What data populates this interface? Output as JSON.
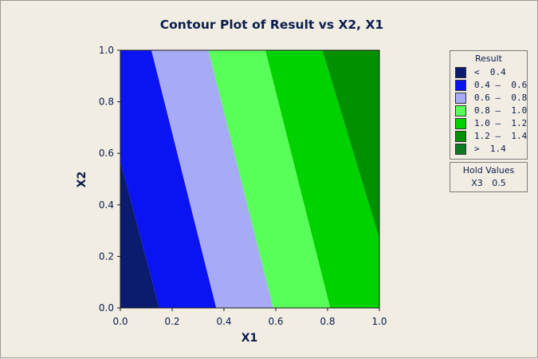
{
  "chart_data": {
    "type": "contour",
    "title": "Contour Plot of Result vs X2, X1",
    "xlabel": "X1",
    "ylabel": "X2",
    "xlim": [
      0.0,
      1.0
    ],
    "ylim": [
      0.0,
      1.0
    ],
    "xticks": [
      "0.0",
      "0.2",
      "0.4",
      "0.6",
      "0.8",
      "1.0"
    ],
    "yticks": [
      "0.0",
      "0.2",
      "0.4",
      "0.6",
      "0.8",
      "1.0"
    ],
    "contour_boundaries": [
      {
        "level": 0.4,
        "x_at_y0": 0.15,
        "x_at_y1": 0.0,
        "y_at_x0": 0.57
      },
      {
        "level": 0.6,
        "x_at_y0": 0.37,
        "x_at_y1": 0.12
      },
      {
        "level": 0.8,
        "x_at_y0": 0.59,
        "x_at_y1": 0.34
      },
      {
        "level": 1.0,
        "x_at_y0": 0.81,
        "x_at_y1": 0.56
      },
      {
        "level": 1.2,
        "x_at_y1": 0.78,
        "y_at_x1": 0.27
      },
      {
        "level": 1.4,
        "x_at_y1": 1.0,
        "y_at_x1": 0.93
      }
    ],
    "legend": {
      "title": "Result",
      "placement": "right",
      "items": [
        {
          "label": "<  0.4",
          "color": "#0b1b6e"
        },
        {
          "label": "0.4 –  0.6",
          "color": "#0a14f2"
        },
        {
          "label": "0.6 –  0.8",
          "color": "#a7abf5"
        },
        {
          "label": "0.8 –  1.0",
          "color": "#59ff59"
        },
        {
          "label": "1.0 –  1.2",
          "color": "#00d200"
        },
        {
          "label": "1.2 –  1.4",
          "color": "#009000"
        },
        {
          "label": ">  1.4",
          "color": "#0e7a24"
        }
      ]
    },
    "hold_values": {
      "title": "Hold Values",
      "items": [
        {
          "name": "X3",
          "value": "0.5"
        }
      ]
    }
  }
}
